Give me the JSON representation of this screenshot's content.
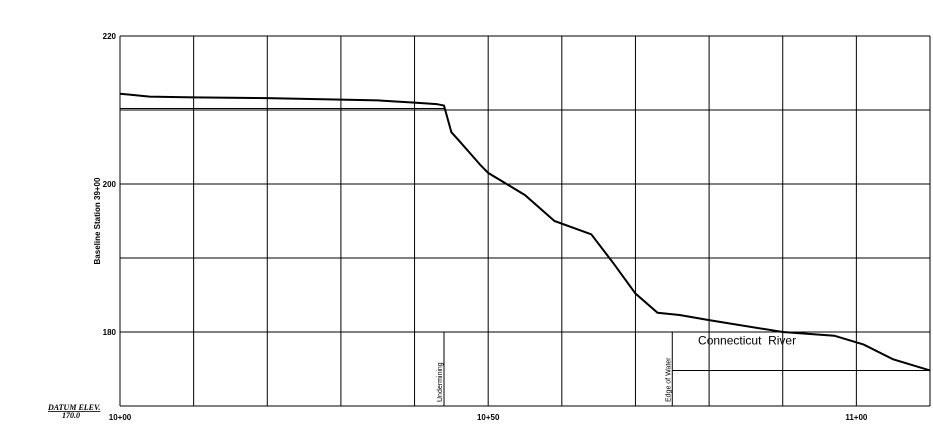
{
  "chart_data": {
    "type": "line",
    "title": "",
    "xlabel": "",
    "ylabel": "Baseline Station 39+00",
    "x_range": [
      1000,
      1110
    ],
    "y_range": [
      170,
      220
    ],
    "x_ticks": [
      {
        "value": 1000,
        "label": "10+00"
      },
      {
        "value": 1050,
        "label": "10+50"
      },
      {
        "value": 1100,
        "label": "11+00"
      }
    ],
    "y_ticks": [
      {
        "value": 220,
        "label": "220"
      },
      {
        "value": 200,
        "label": "200"
      },
      {
        "value": 180,
        "label": "180"
      }
    ],
    "grid": true,
    "series": [
      {
        "name": "",
        "x": [
          1000,
          1004,
          1010,
          1020,
          1030,
          1035,
          1040,
          1043,
          1044,
          1045,
          1046,
          1049,
          1050,
          1055,
          1059,
          1064,
          1067,
          1070,
          1073,
          1075,
          1076,
          1080,
          1090,
          1097,
          1101,
          1105,
          1110
        ],
        "y": [
          212.2,
          211.8,
          211.7,
          211.6,
          211.4,
          211.3,
          211.0,
          210.8,
          210.6,
          207.0,
          205.9,
          202.5,
          201.5,
          198.5,
          195.0,
          193.2,
          189.3,
          185.2,
          182.6,
          182.4,
          182.3,
          181.6,
          180.0,
          179.5,
          178.3,
          176.3,
          174.8
        ]
      }
    ],
    "reference_lines": [
      {
        "axis": "y",
        "value": 210.2,
        "x_from": 1000,
        "x_to": 1044
      },
      {
        "axis": "y",
        "value": 174.8,
        "x_from": 1075,
        "x_to": 1110
      }
    ],
    "annotations": [
      {
        "text": "Undermining",
        "x": 1044
      },
      {
        "text": "Edge of Water",
        "x": 1075
      }
    ],
    "labels": {
      "river": "Connecticut  River",
      "datum_line1": "DATUM ELEV.",
      "datum_line2": "170.0"
    }
  }
}
